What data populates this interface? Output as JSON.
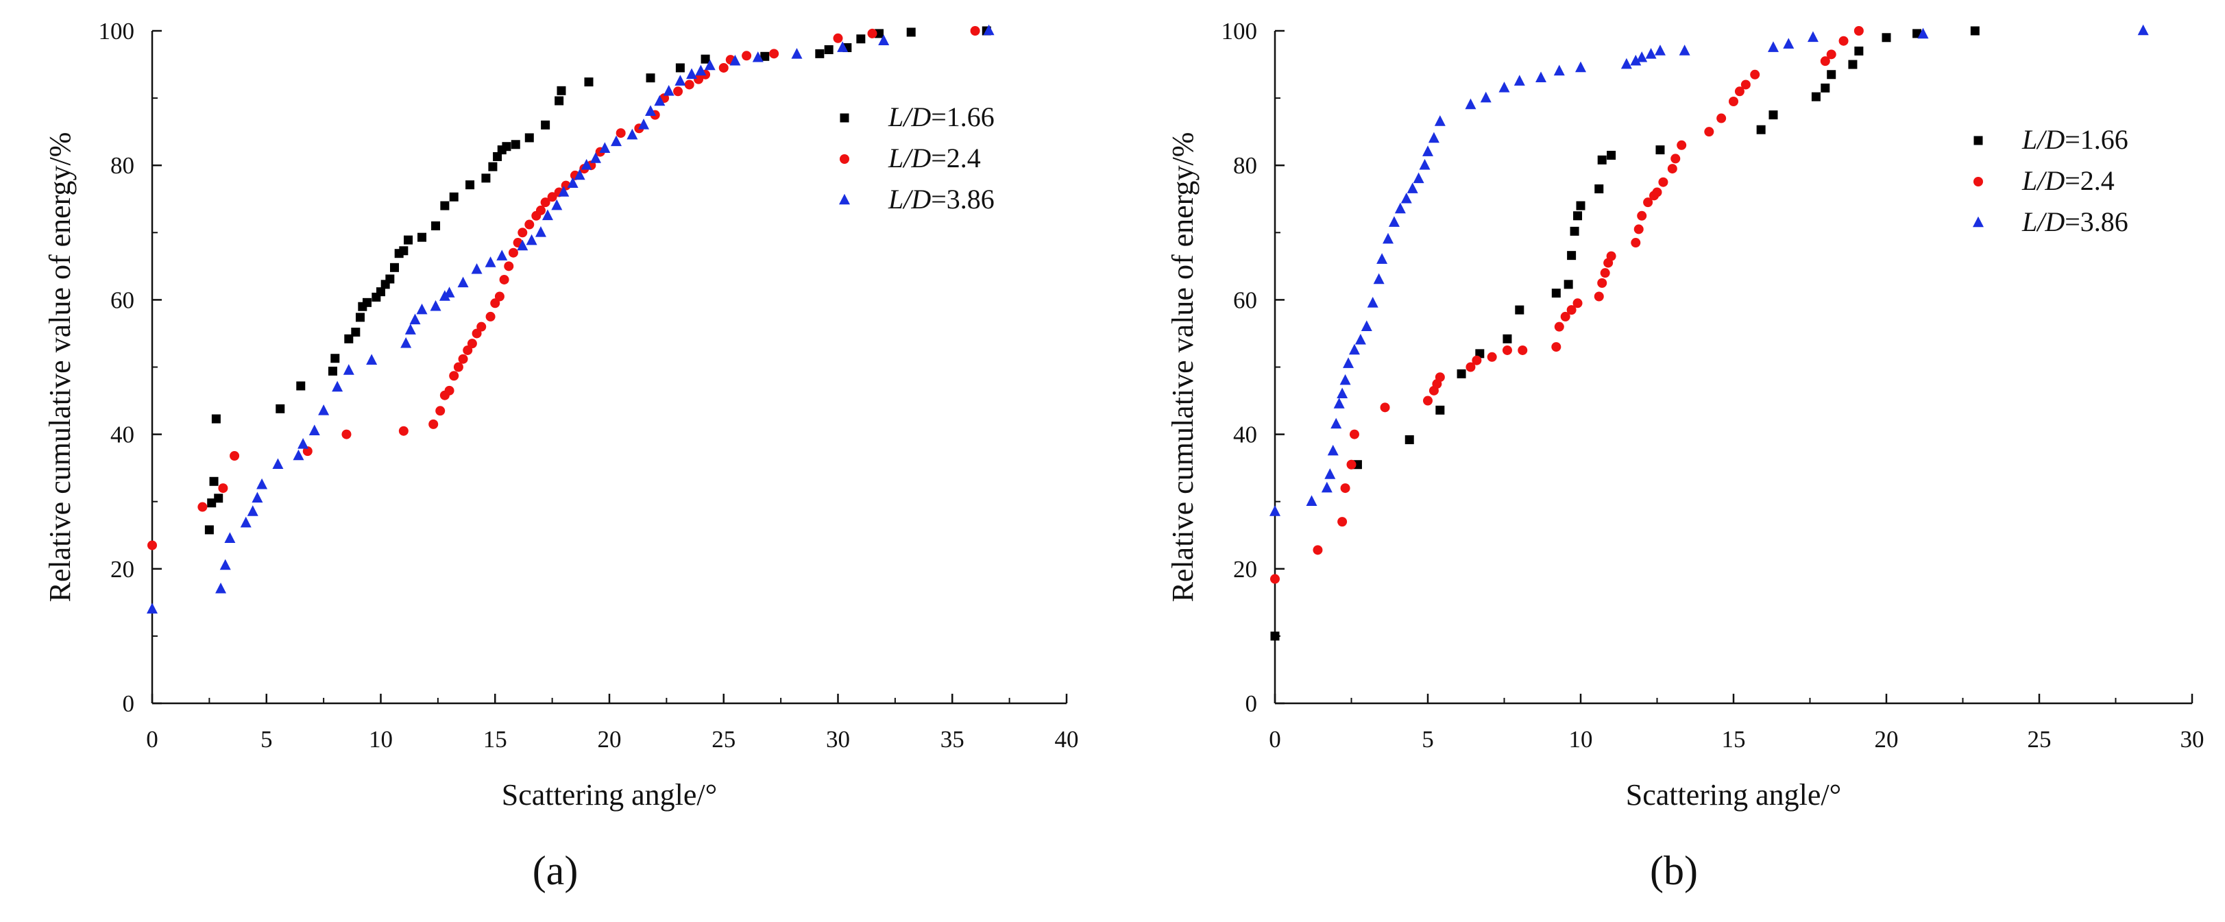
{
  "chart_data": [
    {
      "type": "scatter",
      "panel_label": "(a)",
      "xlabel": "Scattering angle/°",
      "ylabel": "Relative cumulative value of energy/%",
      "xlim": [
        0,
        40
      ],
      "ylim": [
        0,
        100
      ],
      "xticks": [
        0,
        5,
        10,
        15,
        20,
        25,
        30,
        35,
        40
      ],
      "yticks": [
        0,
        20,
        40,
        60,
        80,
        100
      ],
      "grid": false,
      "legend_position": "top-right",
      "series": [
        {
          "name": "L/D=1.66",
          "legend": {
            "var": "L/D",
            "value": "=1.66"
          },
          "color": "#000000",
          "marker": "square",
          "x": [
            2.5,
            2.6,
            2.7,
            2.8,
            2.9,
            5.6,
            6.5,
            7.9,
            8.0,
            8.6,
            8.9,
            9.1,
            9.2,
            9.4,
            9.8,
            10.0,
            10.2,
            10.4,
            10.6,
            10.8,
            11.0,
            11.2,
            11.8,
            12.4,
            12.8,
            13.2,
            13.9,
            14.6,
            14.9,
            15.1,
            15.3,
            15.5,
            15.9,
            16.5,
            17.2,
            17.8,
            17.9,
            19.1,
            21.8,
            23.1,
            24.2,
            26.8,
            29.2,
            29.6,
            30.4,
            31.0,
            31.8,
            33.2,
            36.5
          ],
          "y": [
            25.8,
            29.8,
            33.0,
            42.3,
            30.5,
            43.8,
            47.2,
            49.4,
            51.3,
            54.2,
            55.2,
            57.4,
            59.0,
            59.6,
            60.4,
            61.2,
            62.3,
            63.1,
            64.8,
            66.9,
            67.3,
            68.9,
            69.3,
            71.0,
            74.0,
            75.3,
            77.1,
            78.1,
            79.8,
            81.3,
            82.3,
            82.8,
            83.1,
            84.1,
            86.0,
            89.6,
            91.1,
            92.4,
            93.0,
            94.5,
            95.8,
            96.2,
            96.6,
            97.2,
            97.5,
            98.8,
            99.6,
            99.8,
            100
          ]
        },
        {
          "name": "L/D=2.4",
          "legend": {
            "var": "L/D",
            "value": "=2.4"
          },
          "color": "#ee1111",
          "marker": "circle",
          "x": [
            0.0,
            2.2,
            3.1,
            3.6,
            6.8,
            8.5,
            11.0,
            12.3,
            12.6,
            12.8,
            13.0,
            13.2,
            13.4,
            13.6,
            13.8,
            14.0,
            14.2,
            14.4,
            14.8,
            15.0,
            15.2,
            15.4,
            15.6,
            15.8,
            16.0,
            16.2,
            16.5,
            16.8,
            17.0,
            17.2,
            17.5,
            17.8,
            18.1,
            18.5,
            18.9,
            19.2,
            19.6,
            20.5,
            21.3,
            22.0,
            22.4,
            23.0,
            23.5,
            23.9,
            24.2,
            25.0,
            25.3,
            26.0,
            27.2,
            30.0,
            31.5,
            36.0
          ],
          "y": [
            23.5,
            29.2,
            32.0,
            36.8,
            37.5,
            40.0,
            40.5,
            41.5,
            43.5,
            45.8,
            46.5,
            48.7,
            50.0,
            51.2,
            52.5,
            53.5,
            55.0,
            56.0,
            57.5,
            59.5,
            60.5,
            63.0,
            65.0,
            67.0,
            68.5,
            70.0,
            71.2,
            72.5,
            73.3,
            74.5,
            75.3,
            76.0,
            77.0,
            78.5,
            79.5,
            80.0,
            82.0,
            84.8,
            85.5,
            87.5,
            90.0,
            91.0,
            92.0,
            92.8,
            93.5,
            94.5,
            95.7,
            96.3,
            96.6,
            98.9,
            99.6,
            100
          ]
        },
        {
          "name": "L/D=3.86",
          "legend": {
            "var": "L/D",
            "value": "=3.86"
          },
          "color": "#1a2fe0",
          "marker": "triangle",
          "x": [
            0.0,
            3.0,
            3.2,
            3.4,
            4.1,
            4.4,
            4.6,
            4.8,
            5.5,
            6.4,
            6.6,
            7.1,
            7.5,
            8.1,
            8.6,
            9.6,
            11.1,
            11.3,
            11.5,
            11.8,
            12.4,
            12.8,
            13.0,
            13.6,
            14.2,
            14.8,
            15.3,
            16.2,
            16.6,
            17.0,
            17.3,
            17.7,
            18.0,
            18.4,
            18.7,
            19.0,
            19.4,
            19.8,
            20.3,
            21.0,
            21.5,
            21.8,
            22.2,
            22.6,
            23.1,
            23.6,
            24.0,
            24.4,
            25.5,
            26.5,
            28.2,
            30.2,
            32.0,
            36.6
          ],
          "y": [
            14.0,
            17.0,
            20.5,
            24.5,
            26.8,
            28.5,
            30.5,
            32.5,
            35.5,
            36.8,
            38.5,
            40.5,
            43.5,
            47.0,
            49.5,
            51.0,
            53.5,
            55.5,
            57.0,
            58.5,
            59.0,
            60.5,
            61.0,
            62.5,
            64.5,
            65.5,
            66.5,
            68.0,
            68.8,
            70.0,
            72.5,
            74.0,
            76.0,
            77.3,
            78.5,
            80.0,
            81.0,
            82.5,
            83.5,
            84.5,
            86.0,
            88.0,
            89.5,
            91.0,
            92.5,
            93.5,
            94.0,
            94.8,
            95.5,
            96.0,
            96.5,
            97.5,
            98.5,
            100
          ]
        }
      ]
    },
    {
      "type": "scatter",
      "panel_label": "(b)",
      "xlabel": "Scattering angle/°",
      "ylabel": "Relative cumulative value of energy/%",
      "xlim": [
        0,
        30
      ],
      "ylim": [
        0,
        100
      ],
      "xticks": [
        0,
        5,
        10,
        15,
        20,
        25,
        30
      ],
      "yticks": [
        0,
        20,
        40,
        60,
        80,
        100
      ],
      "grid": false,
      "legend_position": "top-right",
      "series": [
        {
          "name": "L/D=1.66",
          "legend": {
            "var": "L/D",
            "value": "=1.66"
          },
          "color": "#000000",
          "marker": "square",
          "x": [
            0.0,
            2.7,
            4.4,
            5.4,
            6.1,
            6.7,
            7.6,
            8.0,
            9.2,
            9.6,
            9.7,
            9.8,
            9.9,
            10.0,
            10.6,
            10.7,
            11.0,
            12.6,
            15.9,
            16.3,
            17.7,
            18.0,
            18.2,
            18.9,
            19.1,
            20.0,
            21.0,
            22.9
          ],
          "y": [
            10.0,
            35.5,
            39.2,
            43.6,
            49.0,
            52.0,
            54.2,
            58.5,
            61.0,
            62.3,
            66.6,
            70.2,
            72.5,
            74.0,
            76.5,
            80.8,
            81.5,
            82.3,
            85.3,
            87.5,
            90.2,
            91.5,
            93.5,
            95.0,
            97.0,
            99.0,
            99.6,
            100
          ]
        },
        {
          "name": "L/D=2.4",
          "legend": {
            "var": "L/D",
            "value": "=2.4"
          },
          "color": "#ee1111",
          "marker": "circle",
          "x": [
            0.0,
            1.4,
            2.2,
            2.3,
            2.5,
            2.6,
            3.6,
            5.0,
            5.2,
            5.3,
            5.4,
            6.4,
            6.6,
            7.1,
            7.6,
            8.1,
            9.2,
            9.3,
            9.5,
            9.7,
            9.9,
            10.6,
            10.7,
            10.8,
            10.9,
            11.0,
            11.8,
            11.9,
            12.0,
            12.2,
            12.4,
            12.5,
            12.7,
            13.0,
            13.1,
            13.3,
            14.2,
            14.6,
            15.0,
            15.2,
            15.4,
            15.7,
            18.0,
            18.2,
            18.6,
            19.1
          ],
          "y": [
            18.5,
            22.8,
            27.0,
            32.0,
            35.5,
            40.0,
            44.0,
            45.0,
            46.5,
            47.5,
            48.5,
            50.0,
            51.0,
            51.5,
            52.5,
            52.5,
            53.0,
            56.0,
            57.5,
            58.5,
            59.5,
            60.5,
            62.5,
            64.0,
            65.5,
            66.5,
            68.5,
            70.5,
            72.5,
            74.5,
            75.5,
            76.0,
            77.5,
            79.5,
            81.0,
            83.0,
            85.0,
            87.0,
            89.5,
            91.0,
            92.0,
            93.5,
            95.5,
            96.5,
            98.5,
            100
          ]
        },
        {
          "name": "L/D=3.86",
          "legend": {
            "var": "L/D",
            "value": "=3.86"
          },
          "color": "#1a2fe0",
          "marker": "triangle",
          "x": [
            0.0,
            1.2,
            1.7,
            1.8,
            1.9,
            2.0,
            2.1,
            2.2,
            2.3,
            2.4,
            2.6,
            2.8,
            3.0,
            3.2,
            3.4,
            3.5,
            3.7,
            3.9,
            4.1,
            4.3,
            4.5,
            4.7,
            4.9,
            5.0,
            5.2,
            5.4,
            6.4,
            6.9,
            7.5,
            8.0,
            8.7,
            9.3,
            10.0,
            11.5,
            11.8,
            12.0,
            12.3,
            12.6,
            13.4,
            16.3,
            16.8,
            17.6,
            21.2,
            28.4
          ],
          "y": [
            28.5,
            30.0,
            32.0,
            34.0,
            37.5,
            41.5,
            44.5,
            46.0,
            48.0,
            50.5,
            52.5,
            54.0,
            56.0,
            59.5,
            63.0,
            66.0,
            69.0,
            71.5,
            73.5,
            75.0,
            76.5,
            78.0,
            80.0,
            82.0,
            84.0,
            86.5,
            89.0,
            90.0,
            91.5,
            92.5,
            93.0,
            94.0,
            94.5,
            95.0,
            95.5,
            96.0,
            96.5,
            97.0,
            97.0,
            97.5,
            98.0,
            99.0,
            99.5,
            100
          ]
        }
      ]
    }
  ]
}
